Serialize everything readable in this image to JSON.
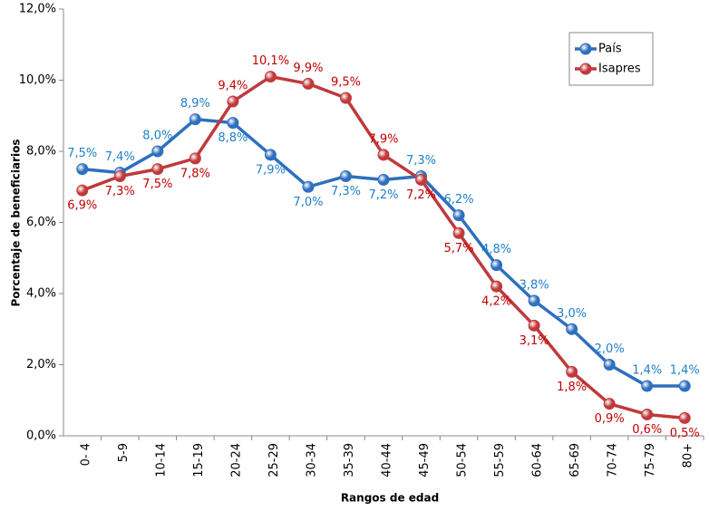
{
  "chart_data": {
    "type": "line",
    "x_label": "Rangos de edad",
    "y_label": "Porcentaje de beneficiarios",
    "categories": [
      "0- 4",
      "5-9",
      "10-14",
      "15-19",
      "20-24",
      "25-29",
      "30-34",
      "35-39",
      "40-44",
      "45-49",
      "50-54",
      "55-59",
      "60-64",
      "65-69",
      "70-74",
      "75-79",
      "80+"
    ],
    "series": [
      {
        "name": "País",
        "color": "#2e6fbf",
        "label_color": "#1f7fc8",
        "values": [
          7.5,
          7.4,
          8.0,
          8.9,
          8.8,
          7.9,
          7.0,
          7.3,
          7.2,
          7.3,
          6.2,
          4.8,
          3.8,
          3.0,
          2.0,
          1.4,
          1.4
        ],
        "value_labels": [
          "7,5%",
          "7,4%",
          "8,0%",
          "8,9%",
          "8,8%",
          "7,9%",
          "7,0%",
          "7,3%",
          "7,2%",
          "7,3%",
          "6,2%",
          "4,8%",
          "3,8%",
          "3,0%",
          "2,0%",
          "1,4%",
          "1,4%"
        ]
      },
      {
        "name": "Isapres",
        "color": "#c0393b",
        "label_color": "#c00000",
        "values": [
          6.9,
          7.3,
          7.5,
          7.8,
          9.4,
          10.1,
          9.9,
          9.5,
          7.9,
          7.2,
          5.7,
          4.2,
          3.1,
          1.8,
          0.9,
          0.6,
          0.5
        ],
        "value_labels": [
          "6,9%",
          "7,3%",
          "7,5%",
          "7,8%",
          "9,4%",
          "10,1%",
          "9,9%",
          "9,5%",
          "7,9%",
          "7,2%",
          "5,7%",
          "4,2%",
          "3,1%",
          "1,8%",
          "0,9%",
          "0,6%",
          "0,5%"
        ]
      }
    ],
    "ylim": [
      0,
      12
    ],
    "yticks": [
      {
        "value": 0,
        "label": "0,0%"
      },
      {
        "value": 2,
        "label": "2,0%"
      },
      {
        "value": 4,
        "label": "4,0%"
      },
      {
        "value": 6,
        "label": "6,0%"
      },
      {
        "value": 8,
        "label": "8,0%"
      },
      {
        "value": 10,
        "label": "10,0%"
      },
      {
        "value": 12,
        "label": "12,0%"
      }
    ],
    "legend": "upper right",
    "grid": false
  }
}
